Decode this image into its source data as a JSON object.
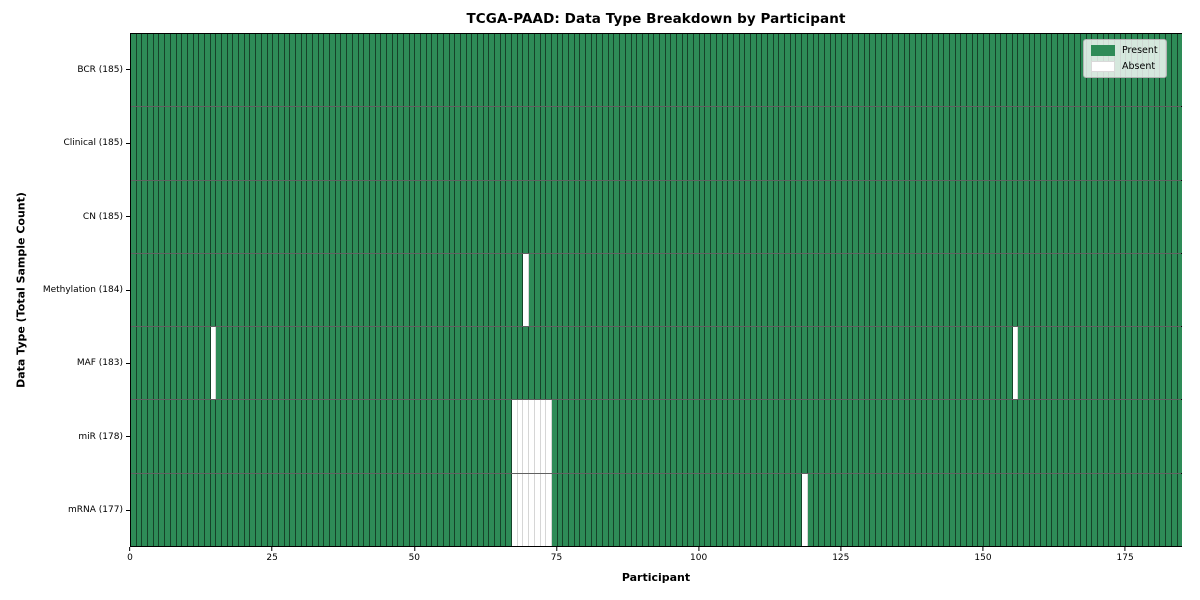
{
  "chart_data": {
    "type": "heatmap",
    "title": "TCGA-PAAD: Data Type Breakdown by Participant",
    "xlabel": "Participant",
    "ylabel": "Data Type (Total Sample Count)",
    "n_participants": 185,
    "xlim": [
      0,
      185
    ],
    "x_ticks": [
      0,
      25,
      50,
      75,
      100,
      125,
      150,
      175
    ],
    "grid": false,
    "colors": {
      "present": "#2e8b57",
      "absent": "#ffffff"
    },
    "legend": {
      "position": "upper right",
      "entries": [
        {
          "label": "Present",
          "color": "#2e8b57"
        },
        {
          "label": "Absent",
          "color": "#ffffff"
        }
      ]
    },
    "rows": [
      {
        "label": "BCR (185)",
        "data_type": "BCR",
        "total_samples": 185,
        "absent_participants": []
      },
      {
        "label": "Clinical (185)",
        "data_type": "Clinical",
        "total_samples": 185,
        "absent_participants": []
      },
      {
        "label": "CN (185)",
        "data_type": "CN",
        "total_samples": 185,
        "absent_participants": []
      },
      {
        "label": "Methylation (184)",
        "data_type": "Methylation",
        "total_samples": 184,
        "absent_participants": [
          69
        ]
      },
      {
        "label": "MAF (183)",
        "data_type": "MAF",
        "total_samples": 183,
        "absent_participants": [
          14,
          155
        ]
      },
      {
        "label": "miR (178)",
        "data_type": "miR",
        "total_samples": 178,
        "absent_participants": [
          67,
          68,
          69,
          70,
          71,
          72,
          73
        ]
      },
      {
        "label": "mRNA (177)",
        "data_type": "mRNA",
        "total_samples": 177,
        "absent_participants": [
          67,
          68,
          69,
          70,
          71,
          72,
          73,
          118
        ]
      }
    ]
  }
}
